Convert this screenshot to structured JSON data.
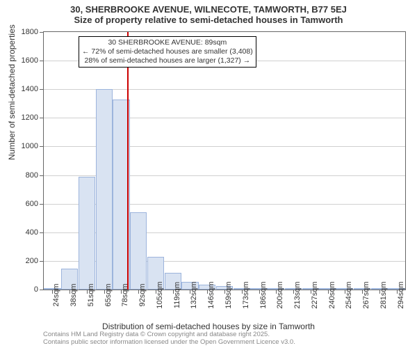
{
  "chart": {
    "type": "histogram",
    "title_main": "30, SHERBROOKE AVENUE, WILNECOTE, TAMWORTH, B77 5EJ",
    "title_sub": "Size of property relative to semi-detached houses in Tamworth",
    "x_axis_title": "Distribution of semi-detached houses by size in Tamworth",
    "y_axis_title": "Number of semi-detached properties",
    "ylim": [
      0,
      1800
    ],
    "ytick_step": 200,
    "x_categories": [
      "24sqm",
      "38sqm",
      "51sqm",
      "65sqm",
      "78sqm",
      "92sqm",
      "105sqm",
      "119sqm",
      "132sqm",
      "146sqm",
      "159sqm",
      "173sqm",
      "186sqm",
      "200sqm",
      "213sqm",
      "227sqm",
      "240sqm",
      "254sqm",
      "267sqm",
      "281sqm",
      "294sqm"
    ],
    "bar_values": [
      10,
      145,
      790,
      1400,
      1330,
      540,
      230,
      115,
      55,
      35,
      22,
      12,
      6,
      3,
      2,
      2,
      1,
      1,
      1,
      1,
      1
    ],
    "bar_fill_color": "#d9e3f2",
    "bar_border_color": "#9cb4dc",
    "background_color": "#ffffff",
    "grid_color": "#d0d0d0",
    "axis_color": "#666666",
    "title_fontsize": 13,
    "label_fontsize": 11,
    "marker": {
      "position_index": 4.85,
      "color": "#cc0000",
      "width": 2
    },
    "annotation": {
      "line1": "30 SHERBROOKE AVENUE: 89sqm",
      "line2": "← 72% of semi-detached houses are smaller (3,408)",
      "line3": "28% of semi-detached houses are larger (1,327) →",
      "border_color": "#000000",
      "bg_color": "#ffffff",
      "fontsize": 10.5
    }
  },
  "footer": {
    "line1": "Contains HM Land Registry data © Crown copyright and database right 2025.",
    "line2": "Contains public sector information licensed under the Open Government Licence v3.0.",
    "color": "#888888",
    "fontsize": 9.5
  }
}
